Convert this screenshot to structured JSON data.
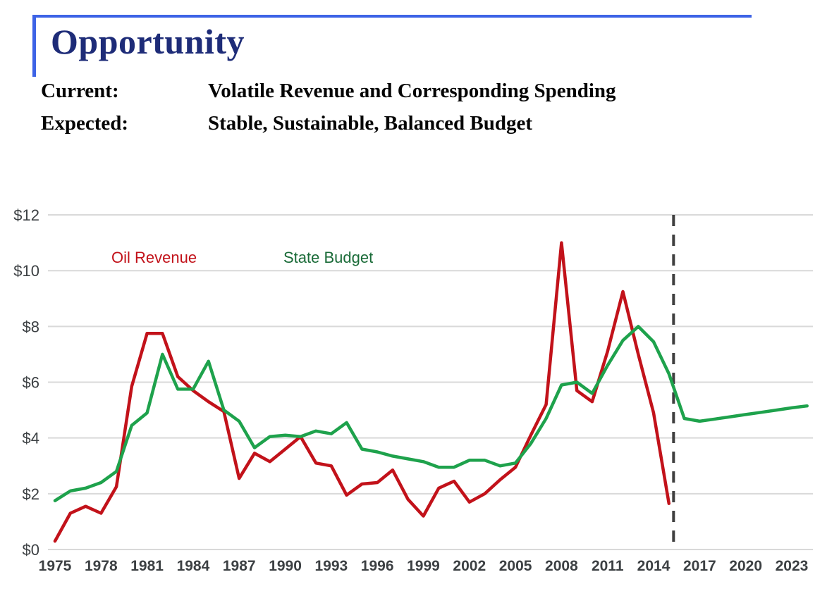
{
  "slide": {
    "title": "Opportunity",
    "rows": [
      {
        "label": "Current:",
        "text": "Volatile Revenue and Corresponding Spending"
      },
      {
        "label": "Expected:",
        "text": "Stable, Sustainable, Balanced Budget"
      }
    ]
  },
  "colors": {
    "accent_rule_blue": "#3d63e6",
    "title_navy": "#1e2c78",
    "oil_revenue_red": "#c2121a",
    "state_budget_green": "#1ea24c",
    "state_budget_label_green": "#1a6b38",
    "axis_label_gray": "#3c4043",
    "gridline_gray": "#d9d9d9",
    "divider_gray": "#3f3f3f"
  },
  "chart_data": {
    "type": "line",
    "title": "",
    "xlabel": "",
    "ylabel": "",
    "ylim": [
      0,
      12
    ],
    "xlim": [
      1974.6,
      2024.4
    ],
    "grid": "horizontal",
    "legend_position": "inside-top-left-text-labels",
    "y_ticks": [
      {
        "value": 0,
        "label": "$0"
      },
      {
        "value": 2,
        "label": "$2"
      },
      {
        "value": 4,
        "label": "$4"
      },
      {
        "value": 6,
        "label": "$6"
      },
      {
        "value": 8,
        "label": "$8"
      },
      {
        "value": 10,
        "label": "$10"
      },
      {
        "value": 12,
        "label": "$12"
      }
    ],
    "x_ticks": [
      1975,
      1978,
      1981,
      1984,
      1987,
      1990,
      1993,
      1996,
      1999,
      2002,
      2005,
      2008,
      2011,
      2014,
      2017,
      2020,
      2023
    ],
    "annotations": {
      "forecast_divider_year": 2015.3,
      "forecast_divider_style": "dashed-vertical-line"
    },
    "legend": [
      {
        "label": "Oil Revenue",
        "color": "#c2121a"
      },
      {
        "label": "State Budget",
        "color": "#1a6b38"
      }
    ],
    "series": [
      {
        "name": "Oil Revenue",
        "color": "#c2121a",
        "start_year": 1975,
        "interval_years": 1,
        "values": [
          0.3,
          1.3,
          1.55,
          1.3,
          2.25,
          5.85,
          7.75,
          7.75,
          6.2,
          5.7,
          5.3,
          4.95,
          2.55,
          3.45,
          3.15,
          3.6,
          4.05,
          3.1,
          3.0,
          1.95,
          2.35,
          2.4,
          2.85,
          1.8,
          1.2,
          2.2,
          2.45,
          1.7,
          2.0,
          2.5,
          2.95,
          4.1,
          5.2,
          11.0,
          5.7,
          5.3,
          7.1,
          9.25,
          7.0,
          4.9,
          1.65
        ]
      },
      {
        "name": "State Budget",
        "color": "#1ea24c",
        "start_year": 1975,
        "interval_years": 1,
        "values": [
          1.75,
          2.1,
          2.2,
          2.4,
          2.8,
          4.45,
          4.9,
          7.0,
          5.75,
          5.75,
          6.75,
          5.0,
          4.6,
          3.65,
          4.05,
          4.1,
          4.05,
          4.25,
          4.15,
          4.55,
          3.6,
          3.5,
          3.35,
          3.25,
          3.15,
          2.95,
          2.95,
          3.2,
          3.2,
          3.0,
          3.1,
          3.8,
          4.7,
          5.9,
          6.0,
          5.6,
          6.6,
          7.5,
          8.0,
          7.45,
          6.3,
          4.7,
          4.6,
          4.68,
          4.76,
          4.84,
          4.92,
          5.0,
          5.08,
          5.15
        ]
      }
    ]
  }
}
